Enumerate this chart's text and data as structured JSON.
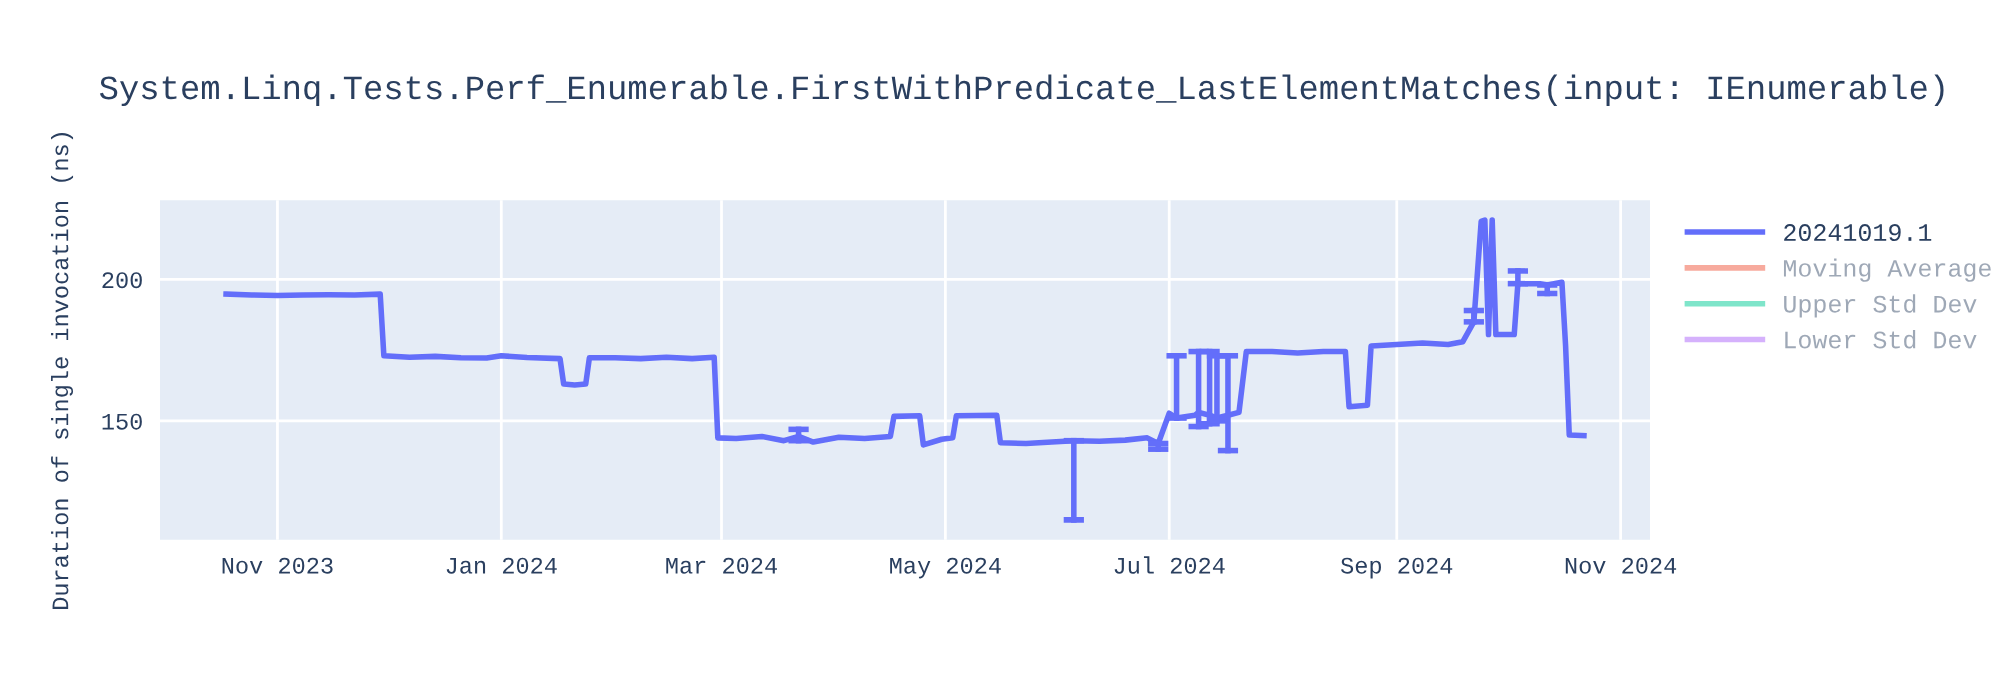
{
  "chart_data": {
    "type": "line",
    "title": "System.Linq.Tests.Perf_Enumerable.FirstWithPredicate_LastElementMatches(input: IEnumerable)",
    "ylabel": "Duration of single invocation (ns)",
    "xlim": [
      "2023-09-30",
      "2024-11-09"
    ],
    "xticks": [
      {
        "value": "2023-11-01",
        "label": "Nov 2023"
      },
      {
        "value": "2024-01-01",
        "label": "Jan 2024"
      },
      {
        "value": "2024-03-01",
        "label": "Mar 2024"
      },
      {
        "value": "2024-05-01",
        "label": "May 2024"
      },
      {
        "value": "2024-07-01",
        "label": "Jul 2024"
      },
      {
        "value": "2024-09-01",
        "label": "Sep 2024"
      },
      {
        "value": "2024-11-01",
        "label": "Nov 2024"
      }
    ],
    "ylim": [
      108,
      228
    ],
    "yticks": [
      150,
      200
    ],
    "grid": true,
    "legend": "top right",
    "marker": "none",
    "line_style": "solid",
    "x": [
      "2023-10-18",
      "2023-10-25",
      "2023-11-01",
      "2023-11-08",
      "2023-11-15",
      "2023-11-22",
      "2023-11-29",
      "2023-11-30",
      "2023-12-07",
      "2023-12-14",
      "2023-12-21",
      "2023-12-28",
      "2024-01-01",
      "2024-01-08",
      "2024-01-17",
      "2024-01-18",
      "2024-01-21",
      "2024-01-24",
      "2024-01-25",
      "2024-02-01",
      "2024-02-08",
      "2024-02-15",
      "2024-02-22",
      "2024-02-28",
      "2024-02-29",
      "2024-03-05",
      "2024-03-12",
      "2024-03-18",
      "2024-03-22",
      "2024-03-26",
      "2024-04-02",
      "2024-04-09",
      "2024-04-16",
      "2024-04-17",
      "2024-04-24",
      "2024-04-25",
      "2024-04-30",
      "2024-05-03",
      "2024-05-04",
      "2024-05-15",
      "2024-05-16",
      "2024-05-23",
      "2024-05-30",
      "2024-06-05",
      "2024-06-12",
      "2024-06-19",
      "2024-06-25",
      "2024-06-28",
      "2024-07-01",
      "2024-07-03",
      "2024-07-08",
      "2024-07-09",
      "2024-07-12",
      "2024-07-14",
      "2024-07-17",
      "2024-07-20",
      "2024-07-22",
      "2024-07-29",
      "2024-08-05",
      "2024-08-12",
      "2024-08-18",
      "2024-08-19",
      "2024-08-24",
      "2024-08-25",
      "2024-09-01",
      "2024-09-08",
      "2024-09-15",
      "2024-09-19",
      "2024-09-22",
      "2024-09-24",
      "2024-09-25",
      "2024-09-26",
      "2024-09-27",
      "2024-09-28",
      "2024-10-03",
      "2024-10-04",
      "2024-10-10",
      "2024-10-12",
      "2024-10-16",
      "2024-10-17",
      "2024-10-18",
      "2024-10-22"
    ],
    "series": [
      {
        "name": "20241019.1",
        "color": "#636efa",
        "values": [
          194.8,
          194.5,
          194.3,
          194.5,
          194.6,
          194.5,
          194.8,
          173,
          172.5,
          172.8,
          172.3,
          172.2,
          173,
          172.4,
          172,
          163,
          162.7,
          163,
          172.3,
          172.3,
          172,
          172.5,
          172,
          172.5,
          144,
          143.8,
          144.5,
          143,
          144.5,
          142.5,
          144.2,
          143.8,
          144.5,
          151.6,
          151.8,
          141.5,
          143.5,
          144,
          151.8,
          152,
          142.3,
          142,
          142.5,
          143,
          142.8,
          143.2,
          144,
          142,
          152.7,
          151,
          152,
          153,
          152,
          151,
          152,
          153,
          174.5,
          174.5,
          174,
          174.5,
          174.5,
          155,
          155.5,
          176.5,
          177,
          177.5,
          177,
          178,
          185,
          220.5,
          221,
          180.5,
          221,
          180.5,
          180.5,
          198.5,
          198.5,
          198,
          199,
          176.5,
          145,
          144.8
        ],
        "errors": [
          null,
          null,
          null,
          null,
          null,
          null,
          null,
          null,
          null,
          null,
          null,
          null,
          null,
          null,
          null,
          null,
          null,
          null,
          null,
          null,
          null,
          null,
          null,
          null,
          null,
          null,
          null,
          null,
          [
            143,
            147
          ],
          null,
          null,
          null,
          null,
          null,
          null,
          null,
          null,
          null,
          null,
          null,
          null,
          null,
          null,
          [
            115,
            143
          ],
          null,
          null,
          null,
          [
            140,
            142
          ],
          null,
          [
            151,
            173
          ],
          null,
          [
            148,
            174.5
          ],
          [
            149,
            174.5
          ],
          [
            150,
            173
          ],
          [
            139.5,
            173
          ],
          null,
          null,
          null,
          null,
          null,
          null,
          null,
          null,
          null,
          null,
          null,
          null,
          null,
          [
            185,
            189
          ],
          null,
          null,
          null,
          null,
          null,
          null,
          [
            198.5,
            203
          ],
          null,
          [
            195,
            198
          ],
          null,
          null,
          null,
          null
        ]
      },
      {
        "name": "Moving Average",
        "color": "#ef553b",
        "values": [
          null,
          null,
          null,
          null,
          null,
          null,
          null,
          null,
          null,
          null,
          null,
          null,
          null,
          null,
          null,
          null,
          null,
          null,
          null,
          null,
          null,
          null,
          null,
          null,
          null,
          null,
          null,
          null,
          null,
          null,
          null,
          null,
          null,
          null,
          null,
          null,
          null,
          null,
          null,
          null,
          null,
          null,
          null,
          null,
          null,
          null,
          null,
          null,
          null,
          null,
          null,
          null,
          null,
          null,
          null,
          null,
          null,
          null,
          null,
          null,
          null,
          null,
          null,
          null,
          null,
          null,
          null,
          null,
          null,
          null,
          null,
          null,
          null,
          null,
          null,
          null,
          null,
          null,
          null,
          null,
          null,
          null
        ]
      },
      {
        "name": "Upper Std Dev",
        "color": "#00cc96",
        "values": [
          null,
          null,
          null,
          null,
          null,
          null,
          null,
          null,
          null,
          null,
          null,
          null,
          null,
          null,
          null,
          null,
          null,
          null,
          null,
          null,
          null,
          null,
          null,
          null,
          null,
          null,
          null,
          null,
          null,
          null,
          null,
          null,
          null,
          null,
          null,
          null,
          null,
          null,
          null,
          null,
          null,
          null,
          null,
          null,
          null,
          null,
          null,
          null,
          null,
          null,
          null,
          null,
          null,
          null,
          null,
          null,
          null,
          null,
          null,
          null,
          null,
          null,
          null,
          null,
          null,
          null,
          null,
          null,
          null,
          null,
          null,
          null,
          null,
          null,
          null,
          null,
          null,
          null,
          null,
          null,
          null,
          null
        ]
      },
      {
        "name": "Lower Std Dev",
        "color": "#ab63fa",
        "values": [
          null,
          null,
          null,
          null,
          null,
          null,
          null,
          null,
          null,
          null,
          null,
          null,
          null,
          null,
          null,
          null,
          null,
          null,
          null,
          null,
          null,
          null,
          null,
          null,
          null,
          null,
          null,
          null,
          null,
          null,
          null,
          null,
          null,
          null,
          null,
          null,
          null,
          null,
          null,
          null,
          null,
          null,
          null,
          null,
          null,
          null,
          null,
          null,
          null,
          null,
          null,
          null,
          null,
          null,
          null,
          null,
          null,
          null,
          null,
          null,
          null,
          null,
          null,
          null,
          null,
          null,
          null,
          null,
          null,
          null,
          null,
          null,
          null,
          null,
          null,
          null,
          null,
          null,
          null,
          null,
          null,
          null
        ]
      }
    ]
  }
}
